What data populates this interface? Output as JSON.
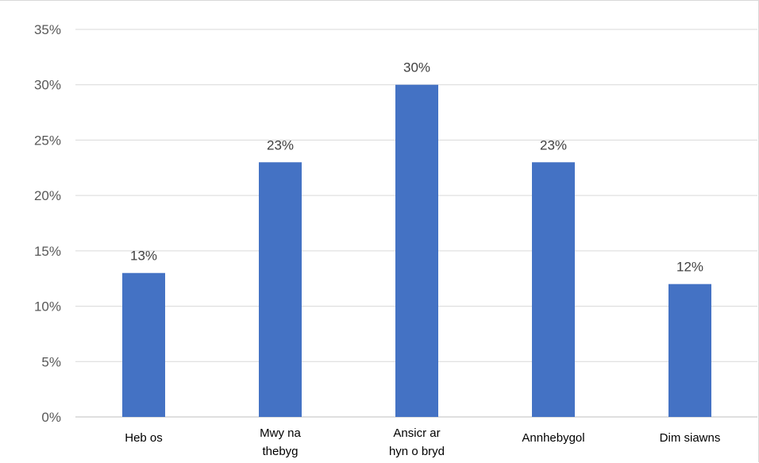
{
  "chart_data": {
    "type": "bar",
    "title": "",
    "xlabel": "",
    "ylabel": "",
    "categories": [
      [
        "Heb os"
      ],
      [
        "Mwy na",
        "thebyg"
      ],
      [
        "Ansicr ar",
        "hyn o bryd"
      ],
      [
        "Annhebygol"
      ],
      [
        "Dim siawns"
      ]
    ],
    "values": [
      13,
      23,
      30,
      23,
      12
    ],
    "data_labels": [
      "13%",
      "23%",
      "30%",
      "23%",
      "12%"
    ],
    "ylim": [
      0,
      35
    ],
    "yticks": [
      0,
      5,
      10,
      15,
      20,
      25,
      30,
      35
    ],
    "ytick_labels": [
      "0%",
      "5%",
      "10%",
      "15%",
      "20%",
      "25%",
      "30%",
      "35%"
    ],
    "grid": true,
    "legend": "none",
    "bar_color": "#4472c4",
    "grid_color": "#d9d9d9"
  }
}
